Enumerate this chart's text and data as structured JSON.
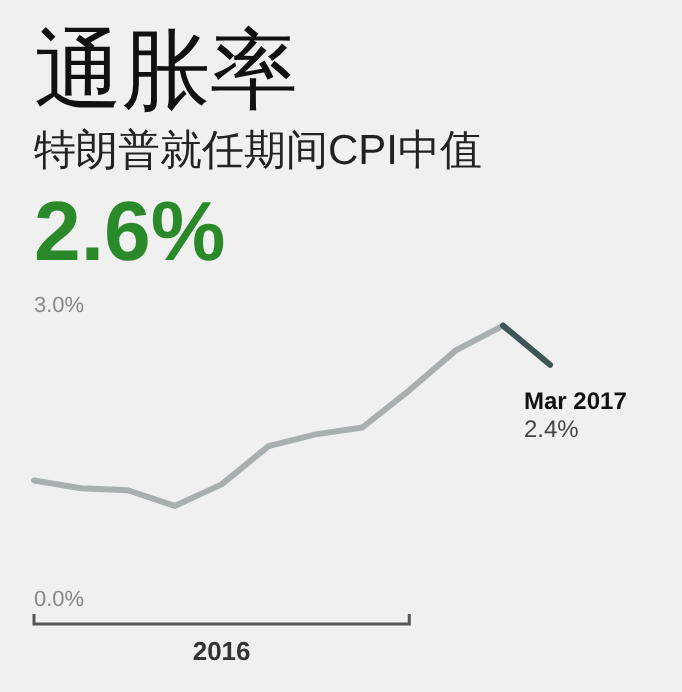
{
  "chart_data": {
    "type": "line",
    "title": "通胀率",
    "subtitle": "特朗普就任期间CPI中值",
    "xlabel": "2016",
    "annotations": [
      "2.6%",
      "Mar 2017"
    ],
    "categories": [
      null,
      null,
      null,
      null,
      null,
      null,
      null,
      null,
      null,
      null,
      null,
      null
    ],
    "series": [
      {
        "color": "#a9afaf",
        "values": [
          1.22,
          1.14,
          1.12,
          0.96,
          1.18,
          1.57,
          1.69,
          1.76,
          2.14,
          2.55,
          2.8,
          null
        ]
      },
      {
        "color": "#3d5757",
        "values": [
          null,
          null,
          null,
          null,
          null,
          null,
          null,
          null,
          null,
          null,
          2.8,
          2.4
        ],
        "value_labels": [
          null,
          null,
          null,
          null,
          null,
          null,
          null,
          null,
          null,
          null,
          null,
          "2.4%"
        ]
      }
    ],
    "ylim": [
      0,
      3
    ],
    "yticks": [
      {
        "value": 0,
        "label": "0.0%"
      },
      {
        "value": 3,
        "label": "3.0%"
      }
    ],
    "grid": false,
    "marker": "none",
    "line_style": "solid"
  }
}
